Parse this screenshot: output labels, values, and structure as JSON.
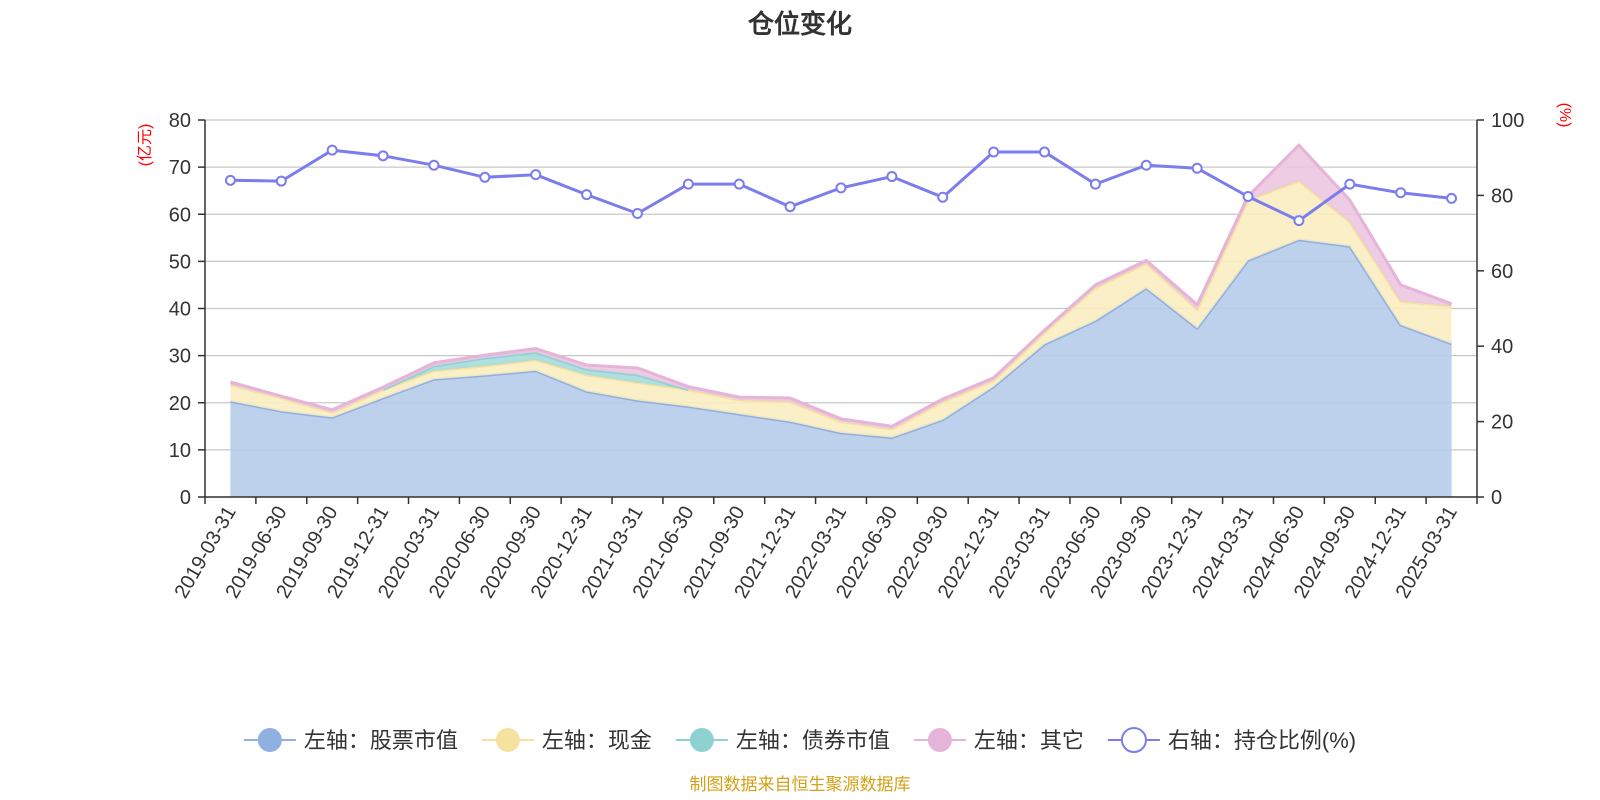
{
  "chart_data": {
    "type": "area",
    "title": "仓位变化",
    "left_axis_unit": "(亿元)",
    "right_axis_unit": "(%)",
    "categories": [
      "2019-03-31",
      "2019-06-30",
      "2019-09-30",
      "2019-12-31",
      "2020-03-31",
      "2020-06-30",
      "2020-09-30",
      "2020-12-31",
      "2021-03-31",
      "2021-06-30",
      "2021-09-30",
      "2021-12-31",
      "2022-03-31",
      "2022-06-30",
      "2022-09-30",
      "2022-12-31",
      "2023-03-31",
      "2023-06-30",
      "2023-09-30",
      "2023-12-31",
      "2024-03-31",
      "2024-06-30",
      "2024-09-30",
      "2024-12-31",
      "2025-03-31"
    ],
    "left_ylim": [
      0,
      80
    ],
    "left_ticks": [
      0,
      10,
      20,
      30,
      40,
      50,
      60,
      70,
      80
    ],
    "right_ylim": [
      0,
      100
    ],
    "right_ticks": [
      0,
      20,
      40,
      60,
      80,
      100
    ],
    "grid": true,
    "legend_position": "bottom",
    "stacked_series": [
      {
        "name": "左轴：股票市值",
        "color": "#8fb0e0",
        "fill": "#b6cbea",
        "values": [
          20.3,
          18.2,
          16.9,
          21.0,
          25.0,
          25.8,
          26.8,
          22.4,
          20.5,
          19.2,
          17.6,
          16.0,
          13.6,
          12.6,
          16.4,
          23.4,
          32.4,
          37.4,
          44.3,
          35.8,
          50.2,
          54.6,
          53.2,
          36.5,
          32.5
        ]
      },
      {
        "name": "左轴：现金",
        "color": "#f5e1a0",
        "fill": "#f9edc0",
        "values": [
          3.5,
          2.8,
          1.0,
          1.8,
          1.8,
          2.0,
          2.3,
          3.5,
          3.8,
          3.6,
          3.0,
          4.2,
          2.4,
          1.8,
          3.8,
          1.3,
          2.5,
          7.0,
          5.3,
          4.0,
          12.8,
          12.5,
          5.2,
          5.0,
          8.0
        ]
      },
      {
        "name": "左轴：债券市值",
        "color": "#8ed1d3",
        "fill": "#a6dcdc",
        "values": [
          0,
          0,
          0,
          0,
          1.0,
          1.7,
          1.6,
          1.2,
          1.6,
          0,
          0,
          0,
          0,
          0,
          0,
          0,
          0,
          0,
          0,
          0,
          0,
          0,
          0,
          0,
          0
        ]
      },
      {
        "name": "左轴：其它",
        "color": "#e6b3d9",
        "fill": "#ebc6e1",
        "values": [
          0.6,
          0.4,
          0.6,
          0.5,
          0.7,
          0.6,
          0.8,
          0.9,
          1.5,
          0.6,
          0.6,
          0.8,
          0.6,
          0.6,
          0.6,
          0.6,
          0.5,
          0.6,
          0.6,
          1.0,
          0.8,
          7.6,
          4.6,
          3.5,
          0.5
        ]
      }
    ],
    "line_series": {
      "name": "右轴：持仓比例(%)",
      "axis": "right",
      "color": "#7b7ded",
      "values": [
        84,
        83.8,
        92,
        90.5,
        88,
        84.8,
        85.5,
        80.2,
        75.2,
        83,
        83,
        77,
        82,
        85,
        79.5,
        91.5,
        91.5,
        83,
        88,
        87.2,
        79.7,
        73.3,
        83,
        80.7,
        79.2
      ]
    },
    "source_note": "制图数据来自恒生聚源数据库"
  }
}
